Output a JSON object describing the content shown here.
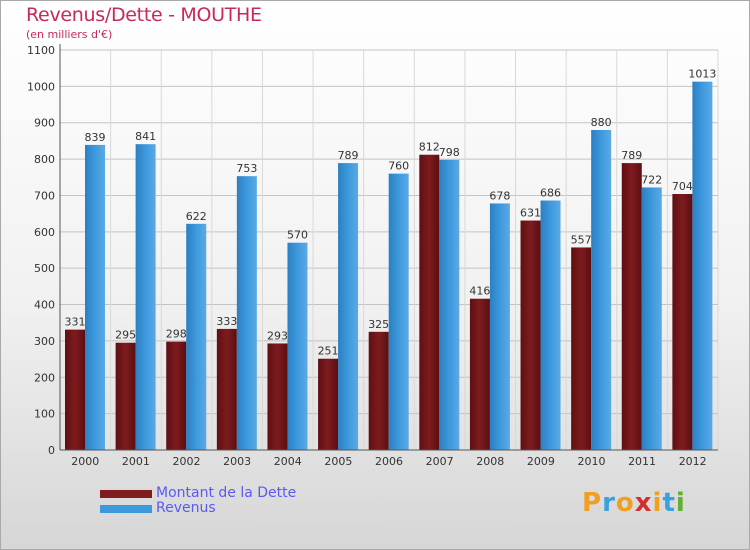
{
  "title": "Revenus/Dette - MOUTHE",
  "subtitle": "(en milliers d'€)",
  "logo": {
    "text": "Proxiti",
    "letters": [
      "P",
      "r",
      "o",
      "x",
      "i",
      "t",
      "i"
    ],
    "colors": [
      "#f0a020",
      "#3aa0e0",
      "#f0a020",
      "#d03030",
      "#f0a020",
      "#3aa0e0",
      "#60b030"
    ]
  },
  "colors": {
    "dette": "#7e1c1f",
    "revenus": "#3d99dd",
    "title": "#c8285e",
    "legend_text": "#5a5af0"
  },
  "chart_data": {
    "type": "bar",
    "categories": [
      "2000",
      "2001",
      "2002",
      "2003",
      "2004",
      "2005",
      "2006",
      "2007",
      "2008",
      "2009",
      "2010",
      "2011",
      "2012"
    ],
    "series": [
      {
        "name": "Montant de la Dette",
        "values": [
          331,
          295,
          298,
          333,
          293,
          251,
          325,
          812,
          416,
          631,
          557,
          789,
          704
        ]
      },
      {
        "name": "Revenus",
        "values": [
          839,
          841,
          622,
          753,
          570,
          789,
          760,
          798,
          678,
          686,
          880,
          722,
          1013
        ]
      }
    ],
    "ylim": [
      0,
      1100
    ],
    "yticks": [
      0,
      100,
      200,
      300,
      400,
      500,
      600,
      700,
      800,
      900,
      1000,
      1100
    ],
    "grid": true,
    "legend": "bottom-left"
  }
}
